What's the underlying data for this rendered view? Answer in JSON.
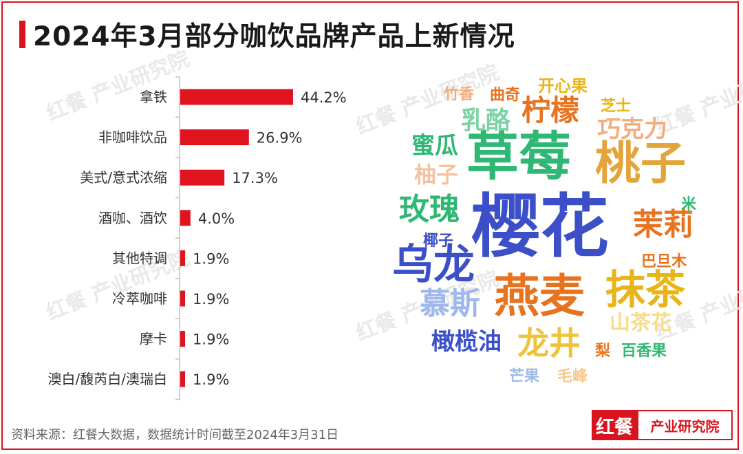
{
  "title": "2024年3月部分咖饮品牌产品上新情况",
  "watermark": "红餐 产业研究院",
  "chart_data": [
    {
      "type": "bar",
      "orientation": "horizontal",
      "categories": [
        "拿铁",
        "非咖啡饮品",
        "美式/意式浓缩",
        "酒咖、酒饮",
        "其他特调",
        "冷萃咖啡",
        "摩卡",
        "澳白/馥芮白/澳瑞白"
      ],
      "values": [
        44.2,
        26.9,
        17.3,
        4.0,
        1.9,
        1.9,
        1.9,
        1.9
      ],
      "value_labels": [
        "44.2%",
        "26.9%",
        "17.3%",
        "4.0%",
        "1.9%",
        "1.9%",
        "1.9%",
        "1.9%"
      ],
      "unit": "%",
      "xlim": [
        0,
        50
      ],
      "bar_color": "#e0141e",
      "grid": false
    },
    {
      "type": "wordcloud",
      "words": [
        {
          "text": "樱花",
          "color": "#3b4fc8"
        },
        {
          "text": "草莓",
          "color": "#2eb873"
        },
        {
          "text": "桃子",
          "color": "#e3a43a"
        },
        {
          "text": "燕麦",
          "color": "#e8731f"
        },
        {
          "text": "抹茶",
          "color": "#e9b418"
        },
        {
          "text": "乌龙",
          "color": "#3b4fc8"
        },
        {
          "text": "龙井",
          "color": "#f0c23a"
        },
        {
          "text": "柠檬",
          "color": "#e8731f"
        },
        {
          "text": "玫瑰",
          "color": "#2eb873"
        },
        {
          "text": "慕斯",
          "color": "#9fb8ea"
        },
        {
          "text": "茉莉",
          "color": "#e8731f"
        },
        {
          "text": "橄榄油",
          "color": "#3b4fc8"
        },
        {
          "text": "巧克力",
          "color": "#f2ad80"
        },
        {
          "text": "乳酪",
          "color": "#7ed3a6"
        },
        {
          "text": "蜜瓜",
          "color": "#2eb873"
        },
        {
          "text": "柚子",
          "color": "#f4c2a0"
        },
        {
          "text": "山茶花",
          "color": "#f7dc8a"
        },
        {
          "text": "开心果",
          "color": "#e9b418"
        },
        {
          "text": "竹香",
          "color": "#f2ad80"
        },
        {
          "text": "曲奇",
          "color": "#e8731f"
        },
        {
          "text": "芝士",
          "color": "#e9b418"
        },
        {
          "text": "米",
          "color": "#2eb873"
        },
        {
          "text": "椰子",
          "color": "#3b4fc8"
        },
        {
          "text": "巴旦木",
          "color": "#e8731f"
        },
        {
          "text": "梨",
          "color": "#e8731f"
        },
        {
          "text": "百香果",
          "color": "#2eb873"
        },
        {
          "text": "芒果",
          "color": "#9fb8ea"
        },
        {
          "text": "毛峰",
          "color": "#f7c88a"
        }
      ]
    }
  ],
  "source": "资料来源：红餐大数据，数据统计时间截至2024年3月31日",
  "logo": {
    "mark": "红餐",
    "text": "产业研究院",
    "color": "#d9141e"
  }
}
